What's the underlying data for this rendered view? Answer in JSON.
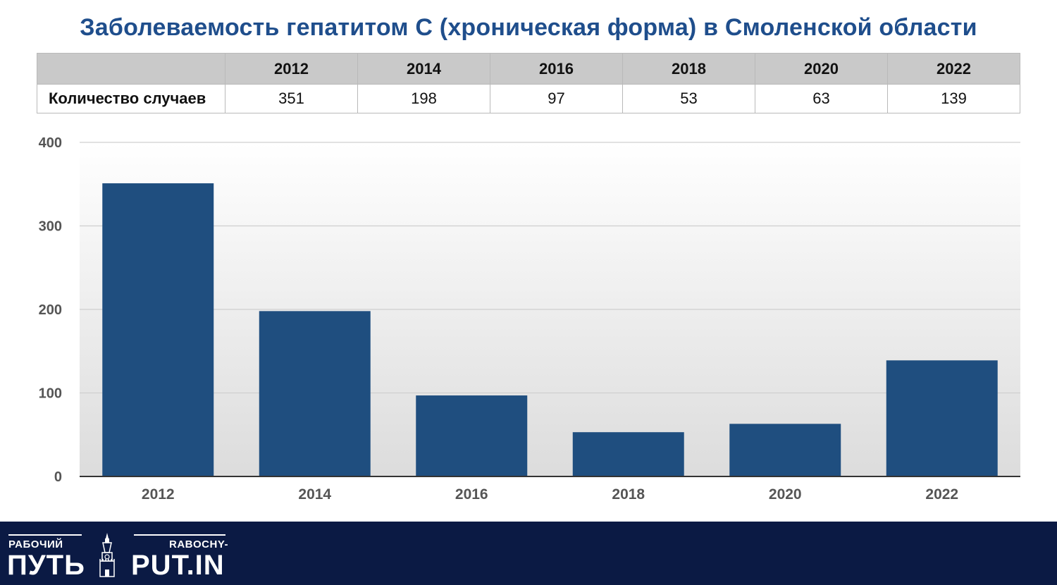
{
  "chart_data": {
    "type": "bar",
    "title": "Заболеваемость гепатитом С (хроническая форма) в Смоленской области",
    "categories": [
      "2012",
      "2014",
      "2016",
      "2018",
      "2020",
      "2022"
    ],
    "values": [
      351,
      198,
      97,
      53,
      63,
      139
    ],
    "ylim": [
      0,
      400
    ],
    "yticks": [
      "0",
      "100",
      "200",
      "300",
      "400"
    ],
    "grid": true,
    "bar_color": "#1f4e7f",
    "table": {
      "row_label": "Количество случаев",
      "headers": [
        "2012",
        "2014",
        "2016",
        "2018",
        "2020",
        "2022"
      ],
      "values": [
        "351",
        "198",
        "97",
        "53",
        "63",
        "139"
      ]
    }
  },
  "footer": {
    "left_small": "РАБОЧИЙ",
    "left_big": "ПУТЬ",
    "right_small": "RABOCHY-",
    "right_big": "PUT.IN",
    "logo_icon": "kremlin-tower-icon",
    "background": "#0b1a44"
  }
}
